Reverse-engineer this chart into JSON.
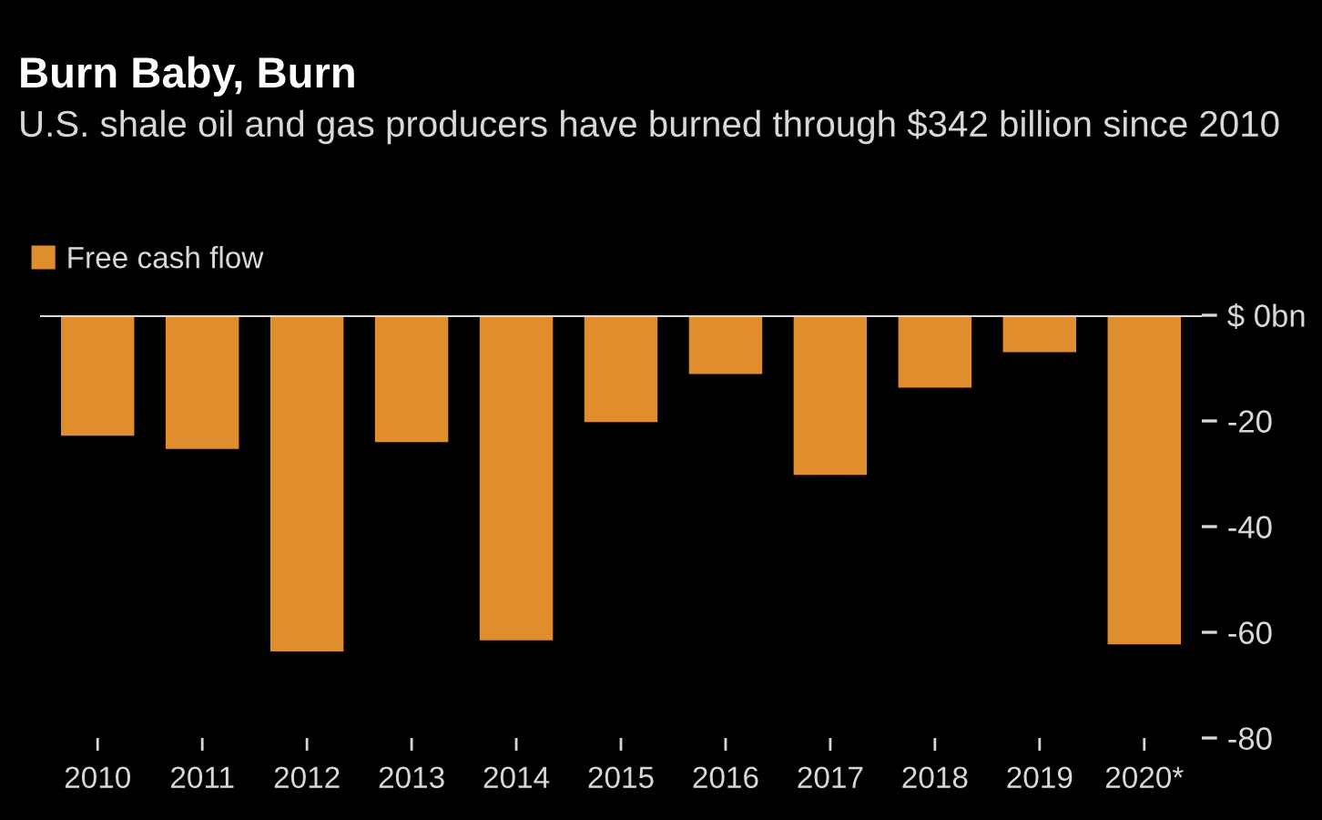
{
  "chart_data": {
    "type": "bar",
    "title": "Burn Baby, Burn",
    "subtitle": "U.S. shale oil and gas producers have burned through $342 billion since 2010",
    "categories": [
      "2010",
      "2011",
      "2012",
      "2013",
      "2014",
      "2015",
      "2016",
      "2017",
      "2018",
      "2019",
      "2020*"
    ],
    "series": [
      {
        "name": "Free cash flow",
        "color": "#e08e2d",
        "values": [
          -22.8,
          -25.3,
          -63.6,
          -24.0,
          -61.5,
          -20.2,
          -11.1,
          -30.2,
          -13.7,
          -7.0,
          -62.3
        ]
      }
    ],
    "ylim": [
      -80,
      0
    ],
    "ref_lines": [
      {
        "axis": "y",
        "value": 0,
        "color": "#d8d8d8"
      }
    ],
    "yticks": [
      {
        "value": 0,
        "label": "$ 0bn"
      },
      -20,
      -40,
      -60,
      -80
    ],
    "grid": false,
    "legend": "top left"
  }
}
